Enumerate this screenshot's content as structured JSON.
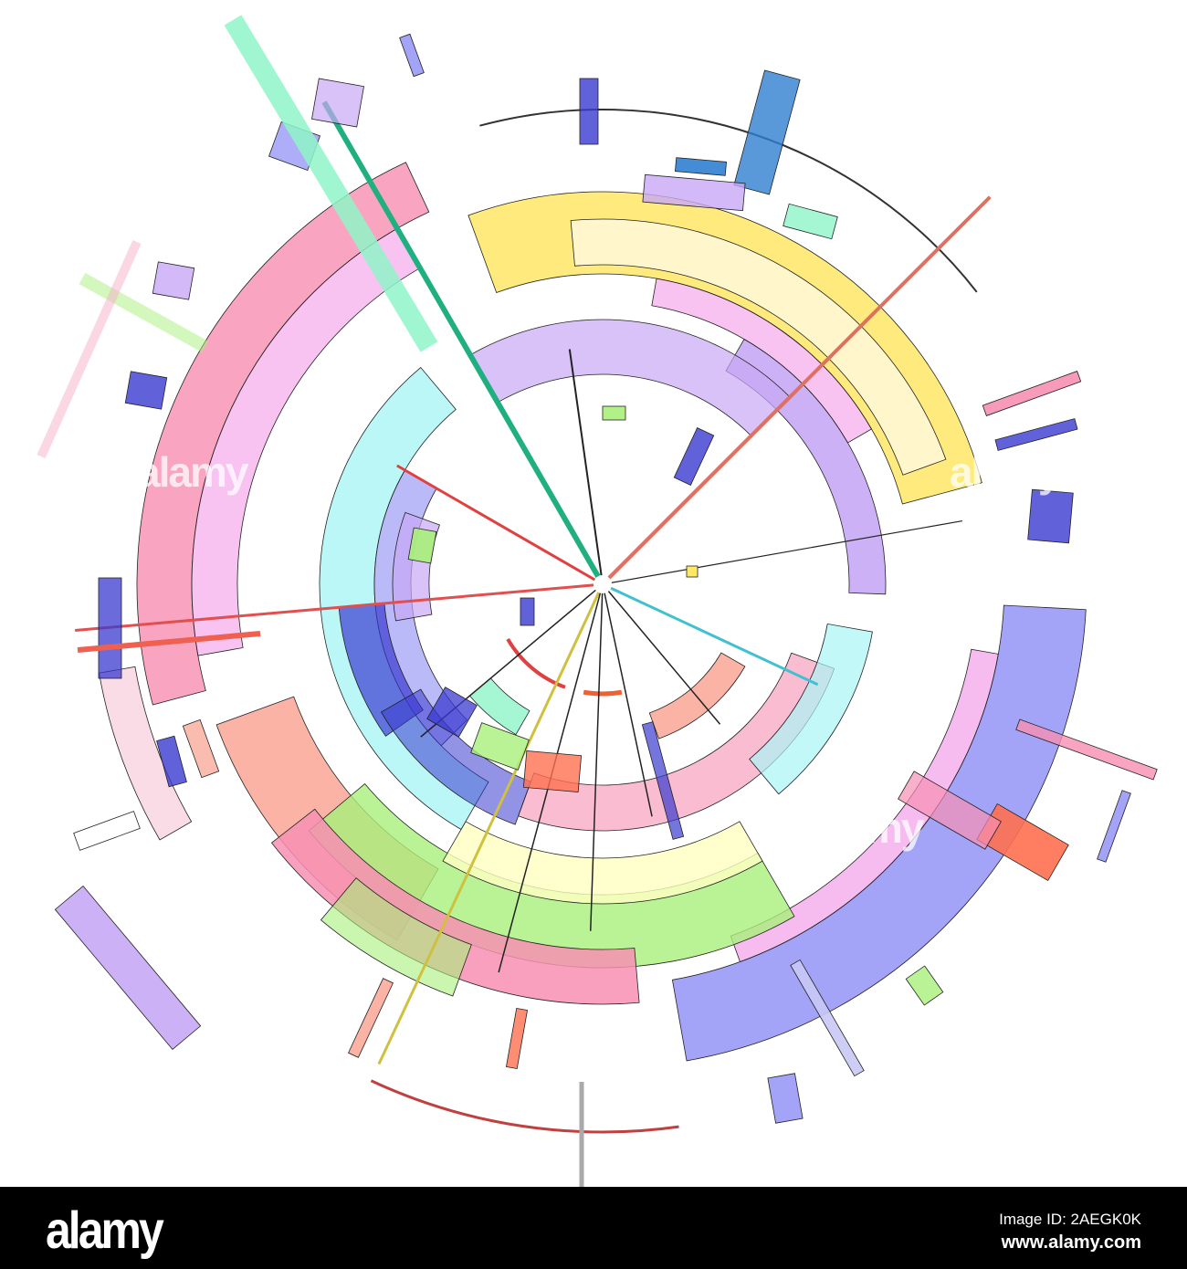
{
  "watermark": {
    "text": "alamy"
  },
  "footer": {
    "logo": "alamy",
    "image_id": "Image ID: 2AEGK0K",
    "website": "www.alamy.com"
  },
  "palette": {
    "yellow": "#ffe866",
    "pink": "#f78fb3",
    "salmon": "#f9a08e",
    "blue": "#8c8cf5",
    "lavender": "#c8a8f5",
    "green": "#a8f07a",
    "cyan": "#aaf5f5",
    "darkblue": "#3a3ad0",
    "magenta": "#f07ae0",
    "mint": "#8ff5c8",
    "background": "#ffffff",
    "footer": "#000000"
  }
}
